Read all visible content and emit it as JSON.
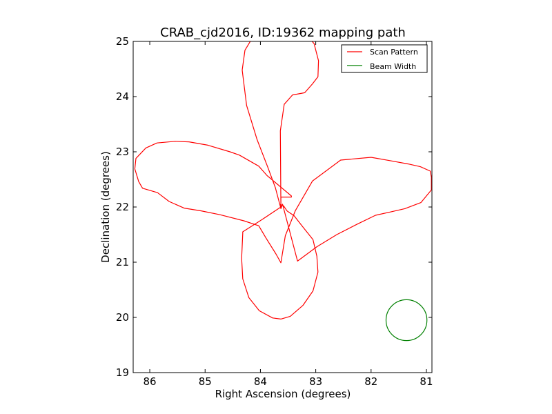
{
  "chart_data": {
    "type": "line",
    "title": "CRAB_cjd2016, ID:19362 mapping path",
    "xlabel": "Right Ascension (degrees)",
    "ylabel": "Declination (degrees)",
    "xlim": [
      86.3,
      80.9
    ],
    "ylim": [
      19,
      25
    ],
    "x_ticks": [
      86,
      85,
      84,
      83,
      82,
      81
    ],
    "y_ticks": [
      19,
      20,
      21,
      22,
      23,
      24,
      25
    ],
    "legend_position": "top-right",
    "legend": [
      "Scan Pattern",
      "Beam Width"
    ],
    "colors": {
      "scan": "#ff0000",
      "beam": "#008000"
    },
    "series": [
      {
        "name": "Scan Pattern",
        "x": [
          83.63,
          83.63,
          83.44,
          83.44,
          83.88,
          84.03,
          84.38,
          84.55,
          84.95,
          85.29,
          85.54,
          85.87,
          86.07,
          86.25,
          86.27,
          86.2,
          86.13,
          85.86,
          85.65,
          85.38,
          85.07,
          84.73,
          84.3,
          84.03,
          83.9,
          83.72,
          83.63,
          83.55,
          83.37,
          83.06,
          82.55,
          82.0,
          81.66,
          81.33,
          81.11,
          80.93,
          80.91,
          80.91,
          81.1,
          81.39,
          81.65,
          81.92,
          82.25,
          82.62,
          82.98,
          83.33,
          83.6,
          83.63,
          83.73,
          83.87,
          84.06,
          84.25,
          84.33,
          84.28,
          84.19,
          84.03,
          83.84,
          83.63,
          83.39,
          83.19,
          83.03,
          82.95,
          82.96,
          83.06,
          83.2,
          83.42,
          83.57,
          83.64,
          83.63,
          84.02,
          84.32,
          84.32,
          84.34,
          84.32,
          84.21,
          84.02,
          83.78,
          83.63,
          83.46,
          83.23,
          83.05,
          82.96,
          82.98,
          83.05,
          83.25,
          83.39,
          83.52,
          83.58,
          83.65
        ],
        "y": [
          22.0,
          22.18,
          22.18,
          22.2,
          22.57,
          22.74,
          22.94,
          23.0,
          23.12,
          23.18,
          23.19,
          23.16,
          23.07,
          22.88,
          22.69,
          22.46,
          22.34,
          22.26,
          22.1,
          21.98,
          21.93,
          21.86,
          21.75,
          21.66,
          21.44,
          21.15,
          20.99,
          21.48,
          21.93,
          22.47,
          22.85,
          22.9,
          22.84,
          22.78,
          22.73,
          22.65,
          22.54,
          22.31,
          22.08,
          21.97,
          21.91,
          21.85,
          21.69,
          21.5,
          21.28,
          21.02,
          22.05,
          21.97,
          22.35,
          22.73,
          23.22,
          23.84,
          24.48,
          24.84,
          24.99,
          25.16,
          25.27,
          25.29,
          25.25,
          25.14,
          24.96,
          24.65,
          24.36,
          24.23,
          24.07,
          24.03,
          23.86,
          23.38,
          22.0,
          21.74,
          21.55,
          21.52,
          21.07,
          20.7,
          20.36,
          20.12,
          19.99,
          19.97,
          20.02,
          20.22,
          20.48,
          20.82,
          21.11,
          21.41,
          21.66,
          21.84,
          21.93,
          22.02,
          22.05
        ]
      },
      {
        "name": "Beam Width",
        "shape": "circle",
        "center": [
          81.36,
          19.95
        ],
        "radius_deg": 0.37
      }
    ]
  }
}
